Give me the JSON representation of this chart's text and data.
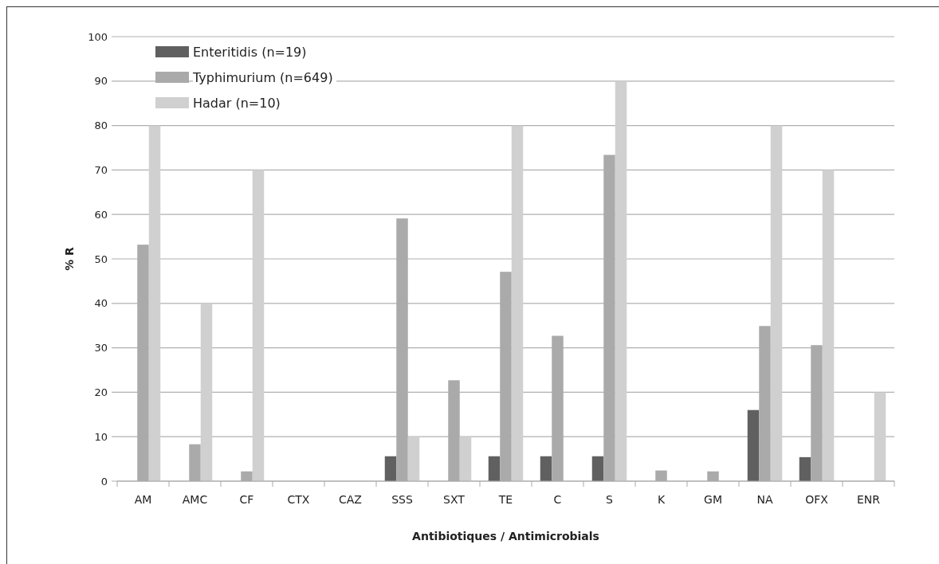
{
  "chart_data": {
    "type": "bar",
    "xlabel": "Antibiotiques / Antimicrobials",
    "ylabel": "% R",
    "categories": [
      "AM",
      "AMC",
      "CF",
      "CTX",
      "CAZ",
      "SSS",
      "SXT",
      "TE",
      "C",
      "S",
      "K",
      "GM",
      "NA",
      "OFX",
      "ENR"
    ],
    "series": [
      {
        "name": "Enteritidis (n=19)",
        "color": "#606060",
        "values": [
          0,
          0,
          0,
          0,
          0,
          5.6,
          0,
          5.6,
          5.6,
          5.6,
          0,
          0,
          16.0,
          5.4,
          0
        ]
      },
      {
        "name": "Typhimurium (n=649)",
        "color": "#aaaaaa",
        "values": [
          53.2,
          8.3,
          2.2,
          0,
          0,
          59.1,
          22.7,
          47.1,
          32.7,
          73.4,
          2.4,
          2.2,
          34.9,
          30.6,
          0
        ]
      },
      {
        "name": "Hadar (n=10)",
        "color": "#d0d0d0",
        "values": [
          80,
          40,
          70,
          0,
          0,
          10,
          10,
          80,
          0,
          90,
          0,
          0,
          80,
          70,
          20
        ]
      }
    ],
    "ylim": [
      0,
      100
    ],
    "yticks": [
      0,
      10,
      20,
      30,
      40,
      50,
      60,
      70,
      80,
      90,
      100
    ],
    "grid": "y",
    "legend": "top left"
  }
}
